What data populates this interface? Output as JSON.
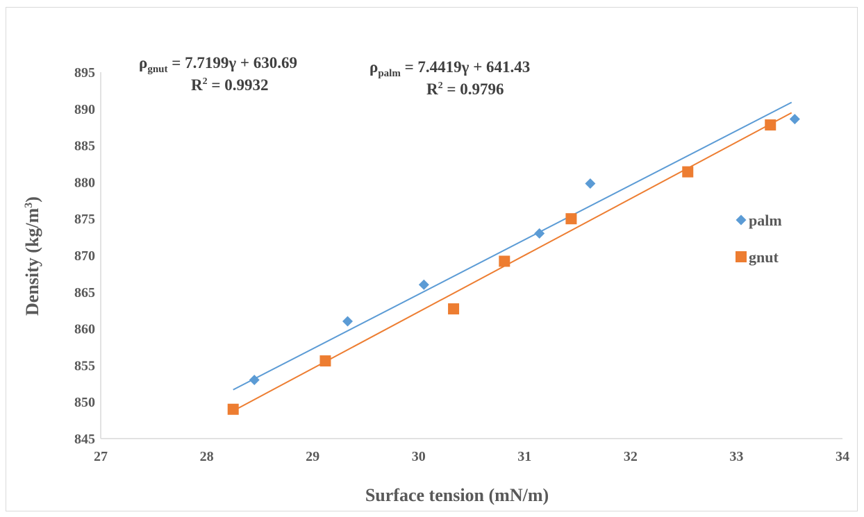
{
  "chart_data": {
    "type": "scatter",
    "xlabel": "Surface tension (mN/m)",
    "ylabel_main": "Density (kg/m",
    "ylabel_sup": "3",
    "ylabel_end": ")",
    "xlim": [
      27,
      34
    ],
    "ylim": [
      845,
      895
    ],
    "xticks": [
      "27",
      "28",
      "29",
      "30",
      "31",
      "32",
      "33",
      "34"
    ],
    "yticks": [
      "845",
      "850",
      "855",
      "860",
      "865",
      "870",
      "875",
      "880",
      "885",
      "890",
      "895"
    ],
    "grid": false,
    "legend_position": "right",
    "series": [
      {
        "name": "palm",
        "color": "#5B9BD5",
        "marker": "diamond",
        "x": [
          28.45,
          29.33,
          30.05,
          31.14,
          31.62,
          33.55
        ],
        "y": [
          853.0,
          861.0,
          866.0,
          873.0,
          879.8,
          888.6
        ],
        "trendline": {
          "slope": 7.4419,
          "intercept": 641.43,
          "x_range": [
            28.25,
            33.52
          ]
        }
      },
      {
        "name": "gnut",
        "color": "#ED7D31",
        "marker": "square",
        "x": [
          28.25,
          29.12,
          30.33,
          30.81,
          31.44,
          32.54,
          33.32
        ],
        "y": [
          849.0,
          855.6,
          862.7,
          869.2,
          875.0,
          881.4,
          887.8
        ],
        "trendline": {
          "slope": 7.7199,
          "intercept": 630.69,
          "x_range": [
            28.25,
            33.52
          ]
        }
      }
    ],
    "annotations": {
      "gnut_eq": {
        "rho": "ρ",
        "sub": "gnut",
        "rest": " = 7.7199γ + 630.69"
      },
      "gnut_r2": {
        "r": "R",
        "sup": "2",
        "rest": " = 0.9932"
      },
      "palm_eq": {
        "rho": "ρ",
        "sub": "palm",
        "rest": " = 7.4419γ + 641.43"
      },
      "palm_r2": {
        "r": "R",
        "sup": "2",
        "rest": " = 0.9796"
      }
    }
  }
}
